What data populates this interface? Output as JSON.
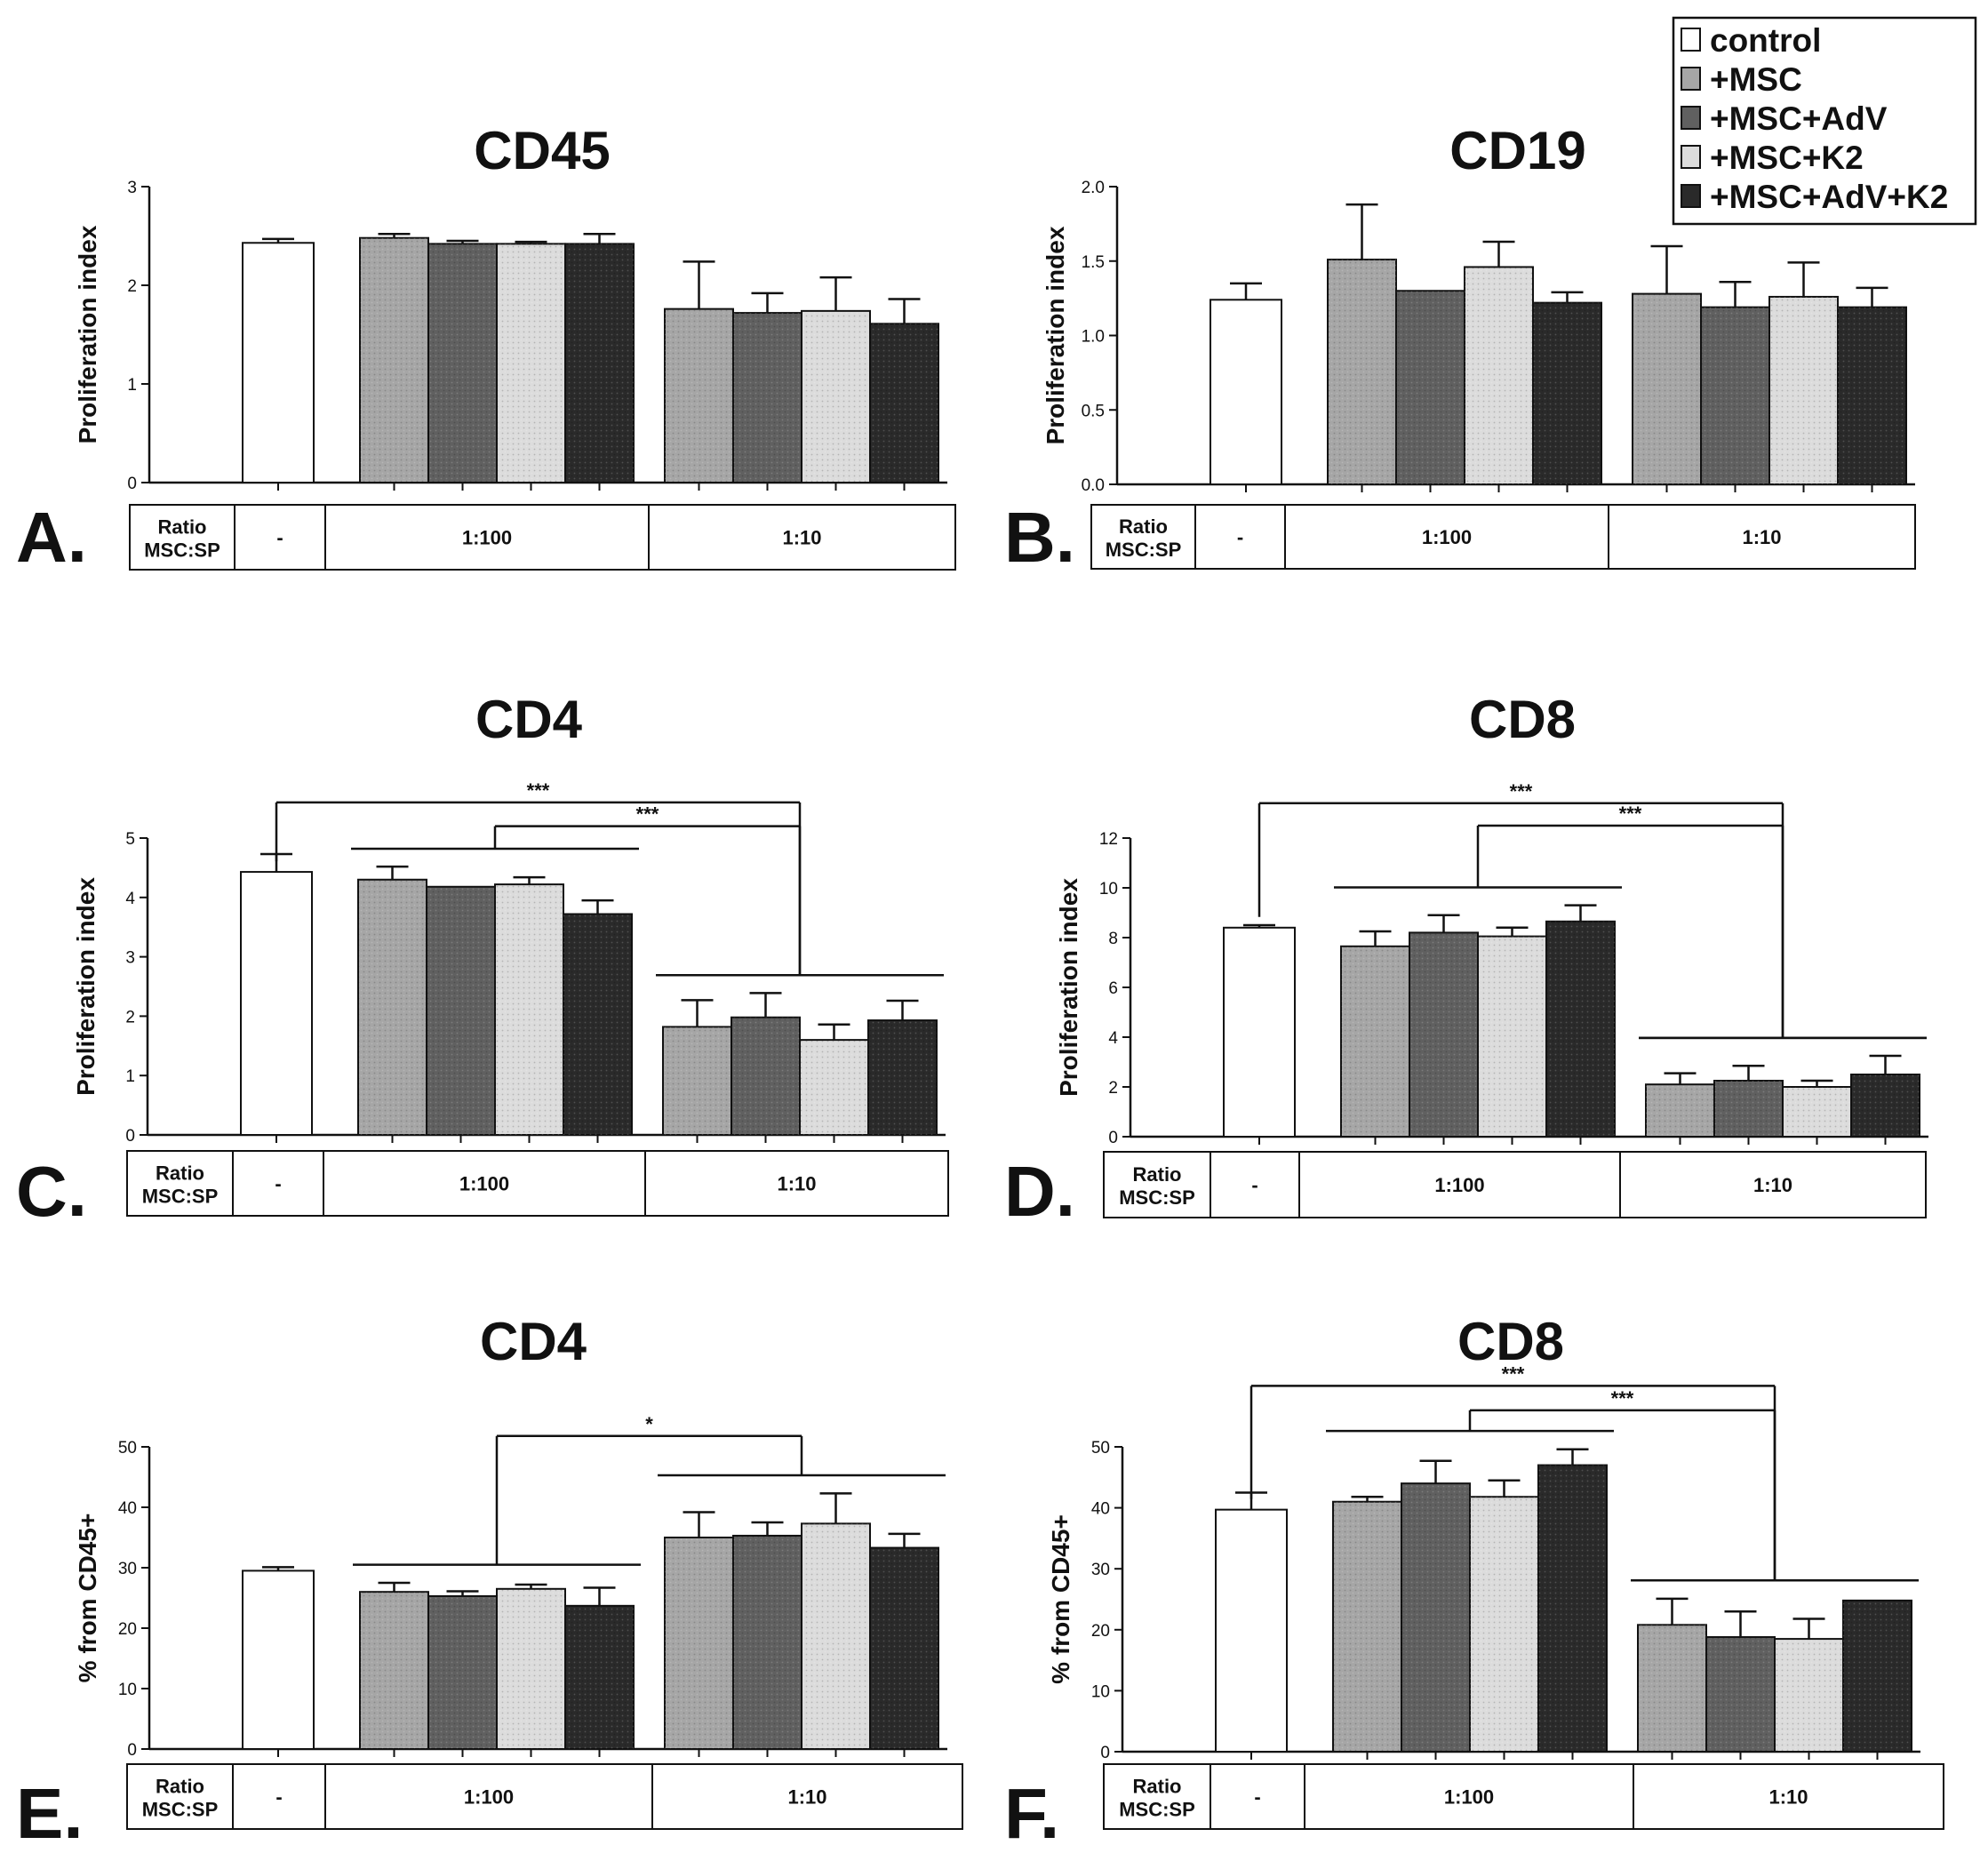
{
  "legend": {
    "entries": [
      {
        "label": "control",
        "color": "#ffffff"
      },
      {
        "label": "+MSC",
        "color": "#a6a6a6"
      },
      {
        "label": "+MSC+AdV",
        "color": "#606060"
      },
      {
        "label": "+MSC+K2",
        "color": "#dcdcdc"
      },
      {
        "label": "+MSC+AdV+K2",
        "color": "#2a2a2a"
      }
    ]
  },
  "table": {
    "ratio_label_1": "Ratio",
    "ratio_label_2": "MSC:SP",
    "groups": [
      "-",
      "1:100",
      "1:10"
    ]
  },
  "colors": {
    "control": "#ffffff",
    "msc": "#a6a6a6",
    "msc_adv": "#606060",
    "msc_k2": "#dcdcdc",
    "msc_adv_k2": "#2a2a2a",
    "stroke": "#111111"
  },
  "chart_data": [
    {
      "type": "bar",
      "panel": "A.",
      "title": "CD45",
      "ylabel": "Proliferation index",
      "xlabel": "",
      "ylim": [
        0,
        3
      ],
      "yticks": [
        "0",
        "1",
        "2",
        "3"
      ],
      "grid": false,
      "series": [
        "control",
        "+MSC",
        "+MSC+AdV",
        "+MSC+K2",
        "+MSC+AdV+K2"
      ],
      "groups": [
        {
          "ratio": "-",
          "values": [
            2.43
          ],
          "errors": [
            0.04
          ]
        },
        {
          "ratio": "1:100",
          "values": [
            2.48,
            2.42,
            2.42,
            2.42
          ],
          "errors": [
            0.04,
            0.03,
            0.02,
            0.1
          ]
        },
        {
          "ratio": "1:10",
          "values": [
            1.76,
            1.72,
            1.74,
            1.61
          ],
          "errors": [
            0.48,
            0.2,
            0.34,
            0.25
          ]
        }
      ],
      "significance": []
    },
    {
      "type": "bar",
      "panel": "B.",
      "title": "CD19",
      "ylabel": "Proliferation index",
      "xlabel": "",
      "ylim": [
        0,
        2
      ],
      "yticks": [
        "0.0",
        "0.5",
        "1.0",
        "1.5",
        "2.0"
      ],
      "grid": false,
      "series": [
        "control",
        "+MSC",
        "+MSC+AdV",
        "+MSC+K2",
        "+MSC+AdV+K2"
      ],
      "groups": [
        {
          "ratio": "-",
          "values": [
            1.24
          ],
          "errors": [
            0.11
          ]
        },
        {
          "ratio": "1:100",
          "values": [
            1.51,
            1.3,
            1.46,
            1.22
          ],
          "errors": [
            0.37,
            0.0,
            0.17,
            0.07
          ]
        },
        {
          "ratio": "1:10",
          "values": [
            1.28,
            1.19,
            1.26,
            1.19
          ],
          "errors": [
            0.32,
            0.17,
            0.23,
            0.13
          ]
        }
      ],
      "significance": []
    },
    {
      "type": "bar",
      "panel": "C.",
      "title": "CD4",
      "ylabel": "Proliferation index",
      "xlabel": "",
      "ylim": [
        0,
        5
      ],
      "yticks": [
        "0",
        "1",
        "2",
        "3",
        "4",
        "5"
      ],
      "grid": false,
      "series": [
        "control",
        "+MSC",
        "+MSC+AdV",
        "+MSC+K2",
        "+MSC+AdV+K2"
      ],
      "groups": [
        {
          "ratio": "-",
          "values": [
            4.43
          ],
          "errors": [
            0.3
          ]
        },
        {
          "ratio": "1:100",
          "values": [
            4.3,
            4.18,
            4.22,
            3.72
          ],
          "errors": [
            0.22,
            0.0,
            0.12,
            0.23
          ]
        },
        {
          "ratio": "1:10",
          "values": [
            1.82,
            1.98,
            1.6,
            1.93
          ],
          "errors": [
            0.45,
            0.41,
            0.26,
            0.33
          ]
        }
      ],
      "significance": [
        {
          "label": "***",
          "from": "control",
          "to": "1:10",
          "bracket_y": 5.6
        },
        {
          "label": "***",
          "from": "1:100",
          "to": "1:10",
          "bracket_y": 5.2
        }
      ]
    },
    {
      "type": "bar",
      "panel": "D.",
      "title": "CD8",
      "ylabel": "Proliferation index",
      "xlabel": "",
      "ylim": [
        0,
        12
      ],
      "yticks": [
        "0",
        "2",
        "4",
        "6",
        "8",
        "10",
        "12"
      ],
      "grid": false,
      "series": [
        "control",
        "+MSC",
        "+MSC+AdV",
        "+MSC+K2",
        "+MSC+AdV+K2"
      ],
      "groups": [
        {
          "ratio": "-",
          "values": [
            8.4
          ],
          "errors": [
            0.1
          ]
        },
        {
          "ratio": "1:100",
          "values": [
            7.65,
            8.2,
            8.05,
            8.65
          ],
          "errors": [
            0.6,
            0.7,
            0.35,
            0.65
          ]
        },
        {
          "ratio": "1:10",
          "values": [
            2.1,
            2.25,
            2.0,
            2.5
          ],
          "errors": [
            0.45,
            0.6,
            0.25,
            0.75
          ]
        }
      ],
      "significance": [
        {
          "label": "***",
          "from": "control",
          "to": "1:10",
          "bracket_y": 13.4
        },
        {
          "label": "***",
          "from": "1:100",
          "to": "1:10",
          "bracket_y": 12.5
        }
      ]
    },
    {
      "type": "bar",
      "panel": "E.",
      "title": "CD4",
      "ylabel": "% from CD45+",
      "xlabel": "",
      "ylim": [
        0,
        50
      ],
      "yticks": [
        "0",
        "10",
        "20",
        "30",
        "40",
        "50"
      ],
      "grid": false,
      "series": [
        "control",
        "+MSC",
        "+MSC+AdV",
        "+MSC+K2",
        "+MSC+AdV+K2"
      ],
      "groups": [
        {
          "ratio": "-",
          "values": [
            29.5
          ],
          "errors": [
            0.6
          ]
        },
        {
          "ratio": "1:100",
          "values": [
            26.0,
            25.3,
            26.5,
            23.7
          ],
          "errors": [
            1.5,
            0.8,
            0.7,
            3.0
          ]
        },
        {
          "ratio": "1:10",
          "values": [
            35.0,
            35.3,
            37.3,
            33.3
          ],
          "errors": [
            4.2,
            2.2,
            5.0,
            2.3
          ]
        }
      ],
      "significance": [
        {
          "label": "*",
          "from": "1:100",
          "to": "1:10",
          "bracket_y": 51.8
        }
      ]
    },
    {
      "type": "bar",
      "panel": "F.",
      "title": "CD8",
      "ylabel": "% from CD45+",
      "xlabel": "",
      "ylim": [
        0,
        50
      ],
      "yticks": [
        "0",
        "10",
        "20",
        "30",
        "40",
        "50"
      ],
      "grid": false,
      "series": [
        "control",
        "+MSC",
        "+MSC+AdV",
        "+MSC+K2",
        "+MSC+AdV+K2"
      ],
      "groups": [
        {
          "ratio": "-",
          "values": [
            39.7
          ],
          "errors": [
            2.8
          ]
        },
        {
          "ratio": "1:100",
          "values": [
            41.0,
            44.0,
            41.8,
            47.0
          ],
          "errors": [
            0.8,
            3.7,
            2.7,
            2.6
          ]
        },
        {
          "ratio": "1:10",
          "values": [
            20.8,
            18.8,
            18.5,
            24.8
          ],
          "errors": [
            4.3,
            4.2,
            3.3,
            0.0
          ]
        }
      ],
      "significance": [
        {
          "label": "***",
          "from": "control",
          "to": "1:10",
          "bracket_y": 60.0
        },
        {
          "label": "***",
          "from": "1:100",
          "to": "1:10",
          "bracket_y": 56.0
        }
      ]
    }
  ]
}
